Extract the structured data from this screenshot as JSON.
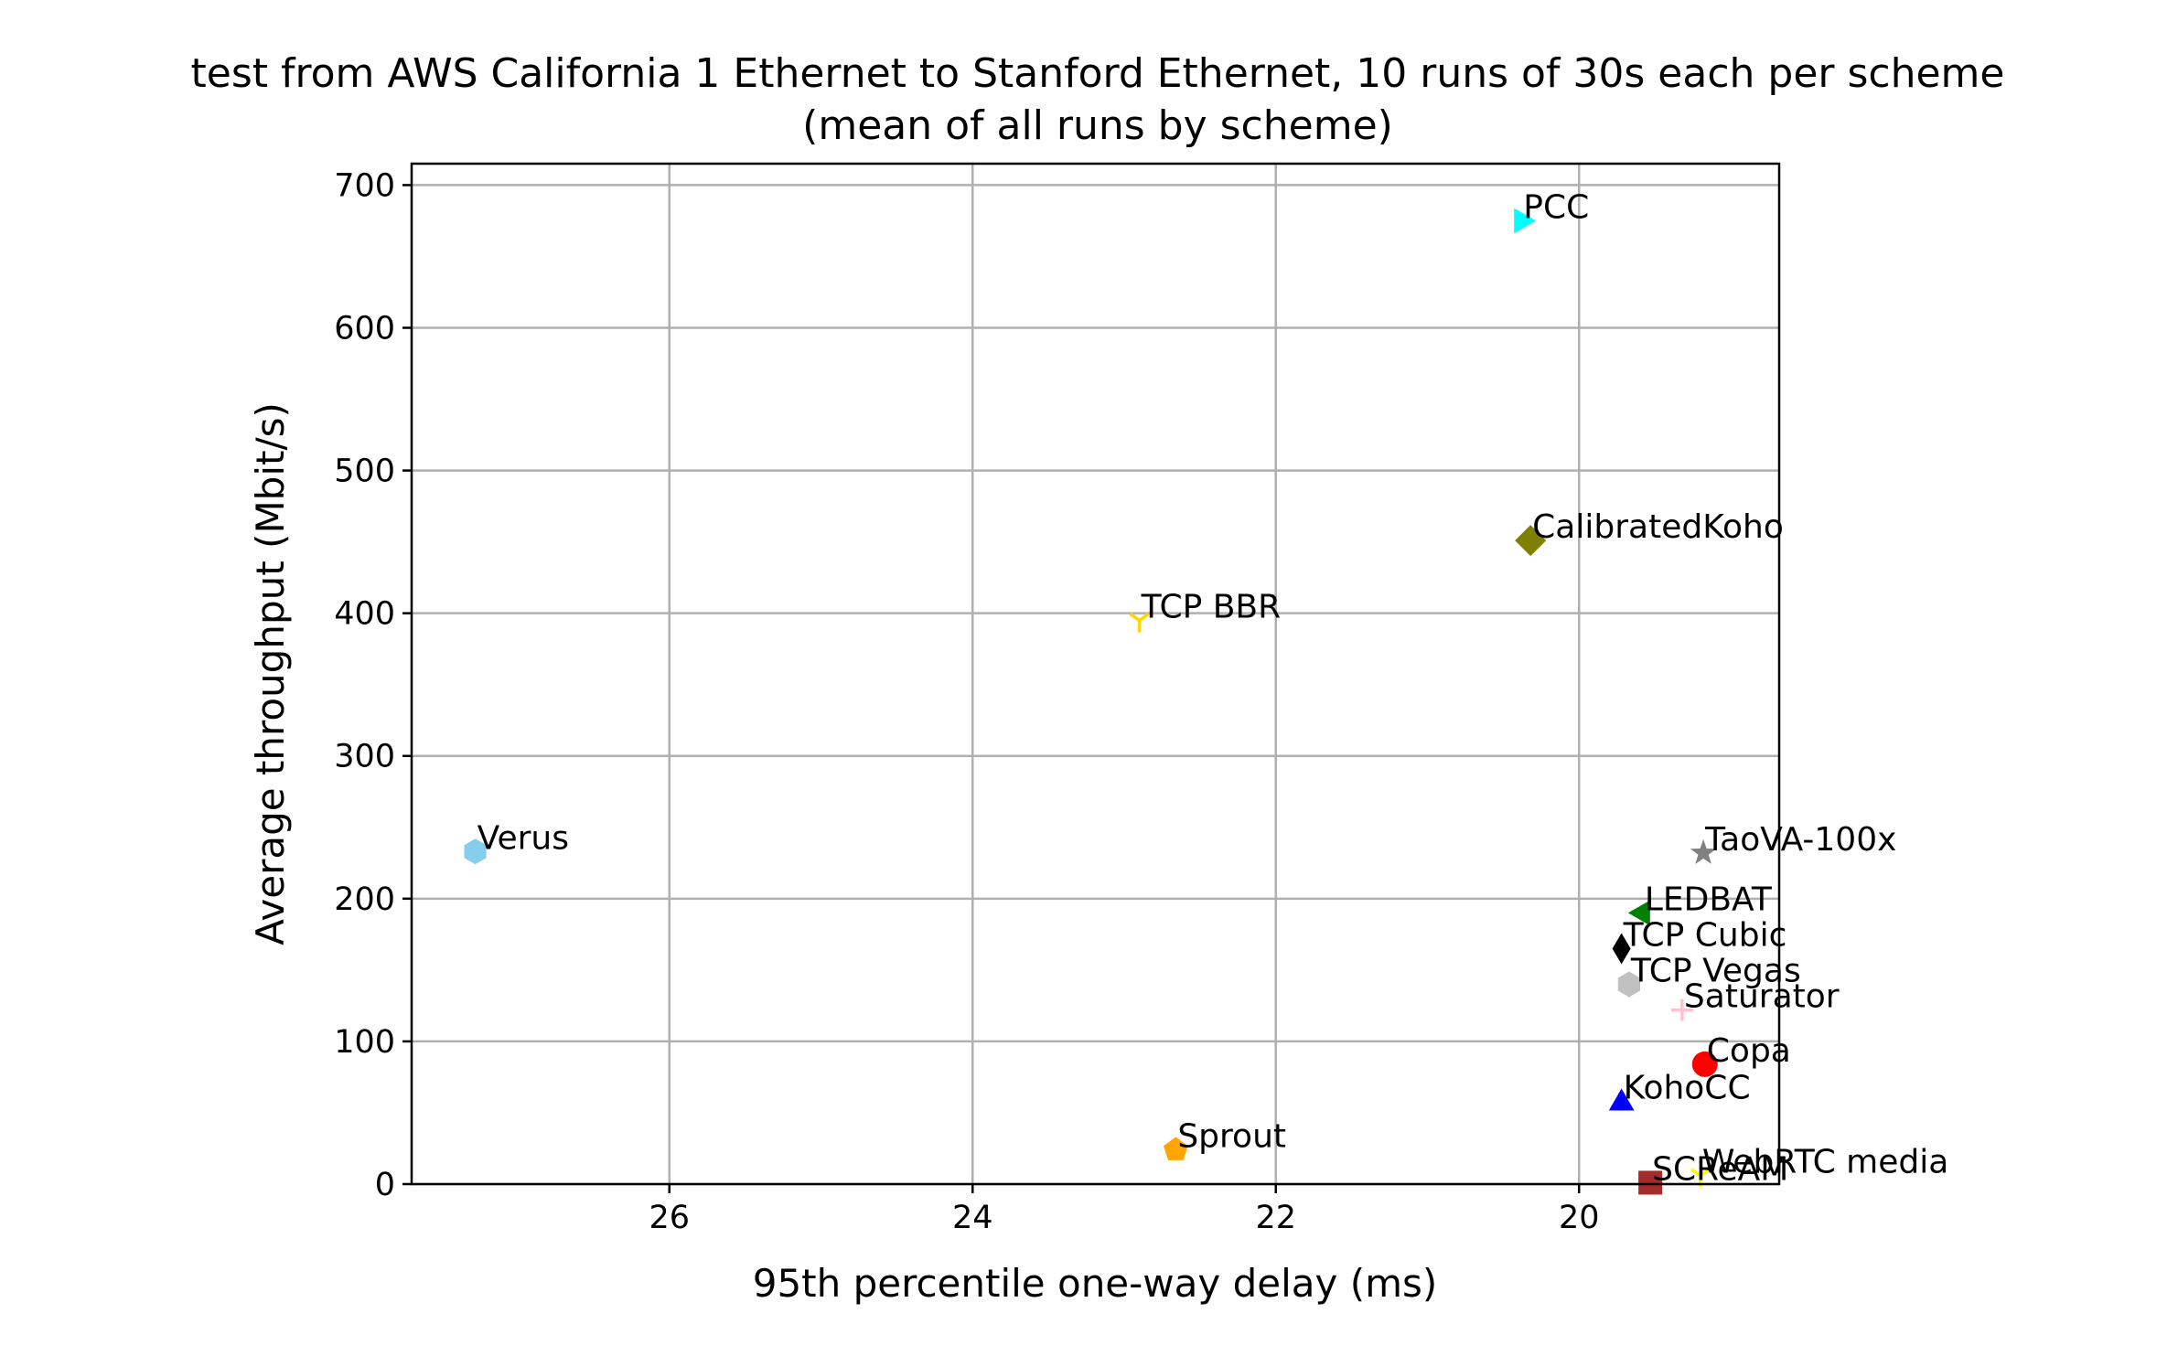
{
  "chart_data": {
    "type": "scatter",
    "title": "test from AWS California 1 Ethernet to Stanford Ethernet, 10 runs of 30s each per scheme",
    "subtitle": "(mean of all runs by scheme)",
    "xlabel": "95th percentile one-way delay (ms)",
    "ylabel": "Average throughput (Mbit/s)",
    "x_axis_inverted": true,
    "xlim": [
      27.7,
      18.68
    ],
    "ylim": [
      0,
      715
    ],
    "xticks": [
      26,
      24,
      22,
      20
    ],
    "yticks": [
      0,
      100,
      200,
      300,
      400,
      500,
      600,
      700
    ],
    "grid": true,
    "points": [
      {
        "name": "PCC",
        "x": 20.38,
        "y": 675,
        "marker": "triangle-right",
        "color": "#00ffff"
      },
      {
        "name": "CalibratedKoho",
        "x": 20.32,
        "y": 451,
        "marker": "diamond",
        "color": "#808000"
      },
      {
        "name": "TCP BBR",
        "x": 22.9,
        "y": 395,
        "marker": "tri-down",
        "color": "#ffd700"
      },
      {
        "name": "Verus",
        "x": 27.28,
        "y": 233,
        "marker": "hexagon",
        "color": "#87ceeb"
      },
      {
        "name": "TaoVA-100x",
        "x": 19.18,
        "y": 232,
        "marker": "star",
        "color": "#808080"
      },
      {
        "name": "LEDBAT",
        "x": 19.58,
        "y": 190,
        "marker": "triangle-left",
        "color": "#008000"
      },
      {
        "name": "TCP Cubic",
        "x": 19.72,
        "y": 165,
        "marker": "thin-diamond",
        "color": "#000000"
      },
      {
        "name": "TCP Vegas",
        "x": 19.67,
        "y": 140,
        "marker": "hexagon",
        "color": "#c0c0c0"
      },
      {
        "name": "Saturator",
        "x": 19.32,
        "y": 122,
        "marker": "plus",
        "color": "#ffc0cb"
      },
      {
        "name": "Copa",
        "x": 19.17,
        "y": 84,
        "marker": "circle",
        "color": "#ff0000"
      },
      {
        "name": "KohoCC",
        "x": 19.72,
        "y": 58,
        "marker": "triangle-up",
        "color": "#0000ff"
      },
      {
        "name": "Sprout",
        "x": 22.66,
        "y": 24,
        "marker": "pentagon",
        "color": "#ffa500"
      },
      {
        "name": "SCReAM",
        "x": 19.53,
        "y": 1,
        "marker": "square",
        "color": "#a52a2a"
      },
      {
        "name": "WebRTC media",
        "x": 19.2,
        "y": 6,
        "marker": "tri-down",
        "color": "#ffff00"
      }
    ]
  }
}
